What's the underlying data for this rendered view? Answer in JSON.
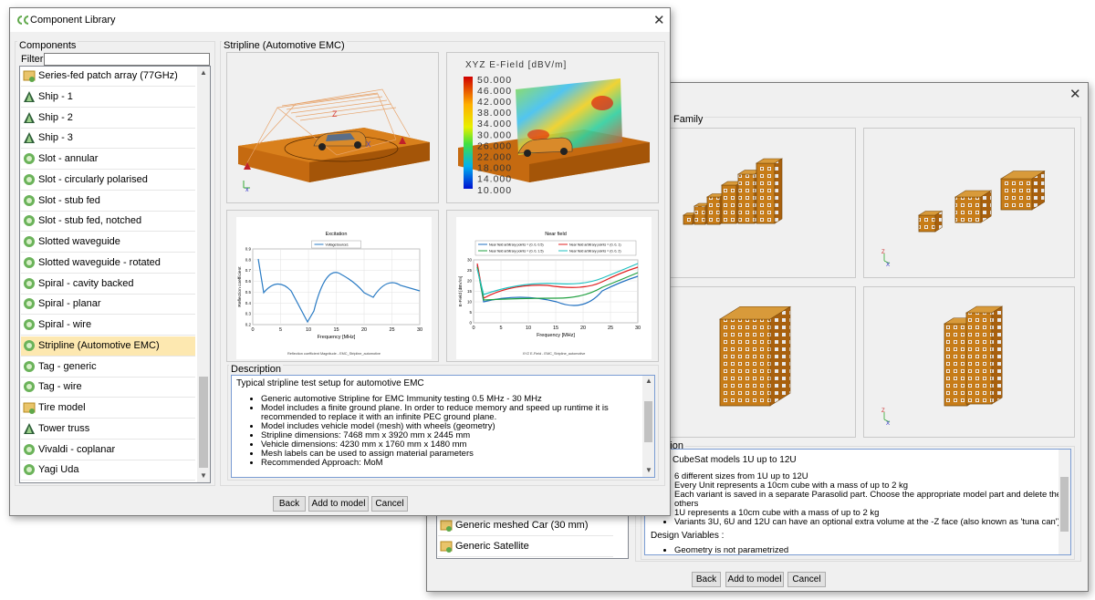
{
  "back_dialog": {
    "family_label": "Family",
    "description_label": "Description",
    "description": {
      "heading": "CubeSat models 1U up to 12U",
      "bullets": [
        "6 different sizes from 1U up to 12U",
        "Every Unit represents a 10cm cube with a mass of up to 2 kg",
        "Each variant is saved in a separate Parasolid part. Choose the appropriate model part and delete the others",
        "1U represents a 10cm cube with a mass of up to 2 kg",
        "Variants 3U, 6U and 12U can have an optional extra volume at the -Z face (also known as 'tuna can')"
      ],
      "design_variables_label": "Design Variables :",
      "design_bullets": [
        "Geometry is not parametrized"
      ]
    },
    "list_items": [
      "Generic meshed Car (30 mm)",
      "Generic Satellite"
    ],
    "buttons": [
      "Back",
      "Add to model",
      "Cancel"
    ]
  },
  "dialog": {
    "title": "Component Library",
    "components_label": "Components",
    "filter_label": "Filter",
    "list_items": [
      "Series-fed patch array (77GHz)",
      "Ship - 1",
      "Ship - 2",
      "Ship - 3",
      "Slot - annular",
      "Slot - circularly polarised",
      "Slot - stub fed",
      "Slot - stub fed, notched",
      "Slotted waveguide",
      "Slotted waveguide - rotated",
      "Spiral - cavity backed",
      "Spiral - planar",
      "Spiral - wire",
      "Stripline (Automotive EMC)",
      "Tag - generic",
      "Tag - wire",
      "Tire model",
      "Tower truss",
      "Vivaldi - coplanar",
      "Yagi Uda"
    ],
    "selected_index": 13,
    "preview_title": "Stripline (Automotive EMC)",
    "field_plot": {
      "title": "XYZ E-Field [dBV/m]",
      "scale": [
        "50.000",
        "46.000",
        "42.000",
        "38.000",
        "34.000",
        "30.000",
        "26.000",
        "22.000",
        "18.000",
        "14.000",
        "10.000"
      ]
    },
    "excitation_plot": {
      "title": "Excitation",
      "legend": [
        "VoltageSource1"
      ],
      "x_label": "Frequency [MHz]",
      "y_label": "Reflection coefficient",
      "x_ticks": [
        "0",
        "5",
        "10",
        "15",
        "20",
        "25",
        "30"
      ],
      "y_ticks": [
        "0.2",
        "0.3",
        "0.4",
        "0.5",
        "0.6",
        "0.7",
        "0.8",
        "0.9"
      ],
      "caption": "Reflection coefficient Magnitude - EMC_Stripline_automotive"
    },
    "near_field_plot": {
      "title": "Near field",
      "legend": [
        "Near field arbitrary points = (0, 0, 0.5)",
        "Near field arbitrary points = (0, 0, 1)",
        "Near field arbitrary points = (0, 0, 1.5)",
        "Near field arbitrary points = (0, 0, 2)"
      ],
      "x_label": "Frequency [MHz]",
      "y_label": "E-Field [dBV/m]",
      "x_ticks": [
        "0",
        "5",
        "10",
        "15",
        "20",
        "25",
        "30"
      ],
      "y_ticks": [
        "0",
        "5",
        "10",
        "15",
        "20",
        "25",
        "30"
      ],
      "caption": "XYZ E-Field - EMC_Stripline_automotive"
    },
    "description_label": "Description",
    "description": {
      "heading": "Typical stripline test setup for automotive EMC",
      "bullets": [
        "Generic automotive Stripline for EMC Immunity testing 0.5 MHz - 30 MHz",
        "Model includes a finite ground plane. In order to reduce memory and speed up runtime it is recommended to replace it with an infinite PEC ground plane.",
        "Model includes vehicle model (mesh) with wheels (geometry)",
        "Stripline dimensions: 7468 mm x 3920 mm x 2445 mm",
        "Vehicle dimensions: 4230 mm x 1760 mm x 1480 mm",
        "Mesh labels can be used to assign material parameters",
        "Recommended Approach: MoM"
      ]
    },
    "buttons": [
      "Back",
      "Add to model",
      "Cancel"
    ]
  }
}
